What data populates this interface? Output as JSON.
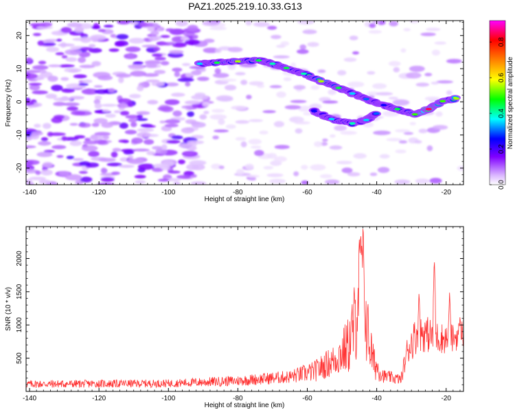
{
  "title": "PAZ1.2025.219.10.33.G13",
  "chart_data": [
    {
      "type": "heatmap",
      "xlabel": "Height of straight line (km)",
      "ylabel": "Frequency (Hz)",
      "xlim": [
        -141,
        -15
      ],
      "ylim": [
        -25,
        24.5
      ],
      "x_ticks": [
        "-140",
        "-120",
        "-100",
        "-80",
        "-60",
        "-40",
        "-20"
      ],
      "y_ticks": [
        "-20",
        "-10",
        "0",
        "10",
        "20"
      ],
      "colorbar": {
        "label": "Normalized spectral amplitude",
        "range": [
          0.0,
          0.92
        ],
        "ticks": [
          "0.0",
          "0.2",
          "0.4",
          "0.6",
          "0.8"
        ],
        "colormap": [
          "#ffffff",
          "#8000ff",
          "#0000ff",
          "#00ffff",
          "#00ff00",
          "#ffff00",
          "#ff8000",
          "#ff0000",
          "#ff00ff"
        ]
      },
      "main_track": [
        {
          "x": -91,
          "y": 11.5,
          "amp": 0.35
        },
        {
          "x": -86,
          "y": 11.8,
          "amp": 0.45
        },
        {
          "x": -80,
          "y": 12.2,
          "amp": 0.55
        },
        {
          "x": -74,
          "y": 12.5,
          "amp": 0.45
        },
        {
          "x": -70,
          "y": 11.5,
          "amp": 0.4
        },
        {
          "x": -66,
          "y": 10.2,
          "amp": 0.45
        },
        {
          "x": -61,
          "y": 8.5,
          "amp": 0.4
        },
        {
          "x": -56,
          "y": 6.2,
          "amp": 0.55
        },
        {
          "x": -51,
          "y": 4.2,
          "amp": 0.45
        },
        {
          "x": -47,
          "y": 2.5,
          "amp": 0.35
        },
        {
          "x": -43,
          "y": 0.8,
          "amp": 0.3
        },
        {
          "x": -38,
          "y": -1.0,
          "amp": 0.25
        },
        {
          "x": -34,
          "y": -2.2,
          "amp": 0.45
        },
        {
          "x": -29,
          "y": -3.8,
          "amp": 0.5
        },
        {
          "x": -25,
          "y": -2.2,
          "amp": 0.85
        },
        {
          "x": -21,
          "y": 0.2,
          "amp": 0.5
        },
        {
          "x": -17,
          "y": 1.0,
          "amp": 0.55
        }
      ],
      "secondary_track": [
        {
          "x": -58,
          "y": -2.8,
          "amp": 0.25
        },
        {
          "x": -53,
          "y": -5.2,
          "amp": 0.35
        },
        {
          "x": -47,
          "y": -6.5,
          "amp": 0.4
        },
        {
          "x": -43,
          "y": -5.5,
          "amp": 0.35
        },
        {
          "x": -40,
          "y": -3.5,
          "amp": 0.3
        }
      ]
    },
    {
      "type": "line",
      "xlabel": "Height of straight line (km)",
      "ylabel": "SNR (10 * v/v)",
      "xlim": [
        -141,
        -15
      ],
      "ylim": [
        0,
        2480
      ],
      "x_ticks": [
        "-140",
        "-120",
        "-100",
        "-80",
        "-60",
        "-40",
        "-20"
      ],
      "y_ticks": [
        "500",
        "1000",
        "1500",
        "2000"
      ],
      "series": [
        {
          "color": "#ff3030",
          "envelope": [
            {
              "x": -141,
              "base": 110,
              "noise": 60
            },
            {
              "x": -100,
              "base": 120,
              "noise": 60
            },
            {
              "x": -80,
              "base": 160,
              "noise": 80
            },
            {
              "x": -65,
              "base": 220,
              "noise": 100
            },
            {
              "x": -58,
              "base": 300,
              "noise": 160
            },
            {
              "x": -52,
              "base": 480,
              "noise": 250
            },
            {
              "x": -48,
              "base": 700,
              "noise": 450
            },
            {
              "x": -46,
              "base": 1100,
              "noise": 700
            },
            {
              "x": -45,
              "base": 1700,
              "noise": 700
            },
            {
              "x": -44,
              "base": 1900,
              "noise": 700
            },
            {
              "x": -43,
              "base": 1000,
              "noise": 600
            },
            {
              "x": -41,
              "base": 450,
              "noise": 280
            },
            {
              "x": -38,
              "base": 230,
              "noise": 100
            },
            {
              "x": -33,
              "base": 180,
              "noise": 80
            },
            {
              "x": -31,
              "base": 650,
              "noise": 250
            },
            {
              "x": -28,
              "base": 900,
              "noise": 300
            },
            {
              "x": -23,
              "base": 820,
              "noise": 250
            },
            {
              "x": -19,
              "base": 780,
              "noise": 220
            },
            {
              "x": -15,
              "base": 880,
              "noise": 220
            }
          ],
          "peaks": [
            {
              "x": -44.6,
              "y": 2450
            },
            {
              "x": -27.8,
              "y": 1510
            },
            {
              "x": -23.4,
              "y": 2020
            },
            {
              "x": -19.0,
              "y": 1500
            },
            {
              "x": -16.0,
              "y": 1150
            }
          ]
        }
      ]
    }
  ]
}
